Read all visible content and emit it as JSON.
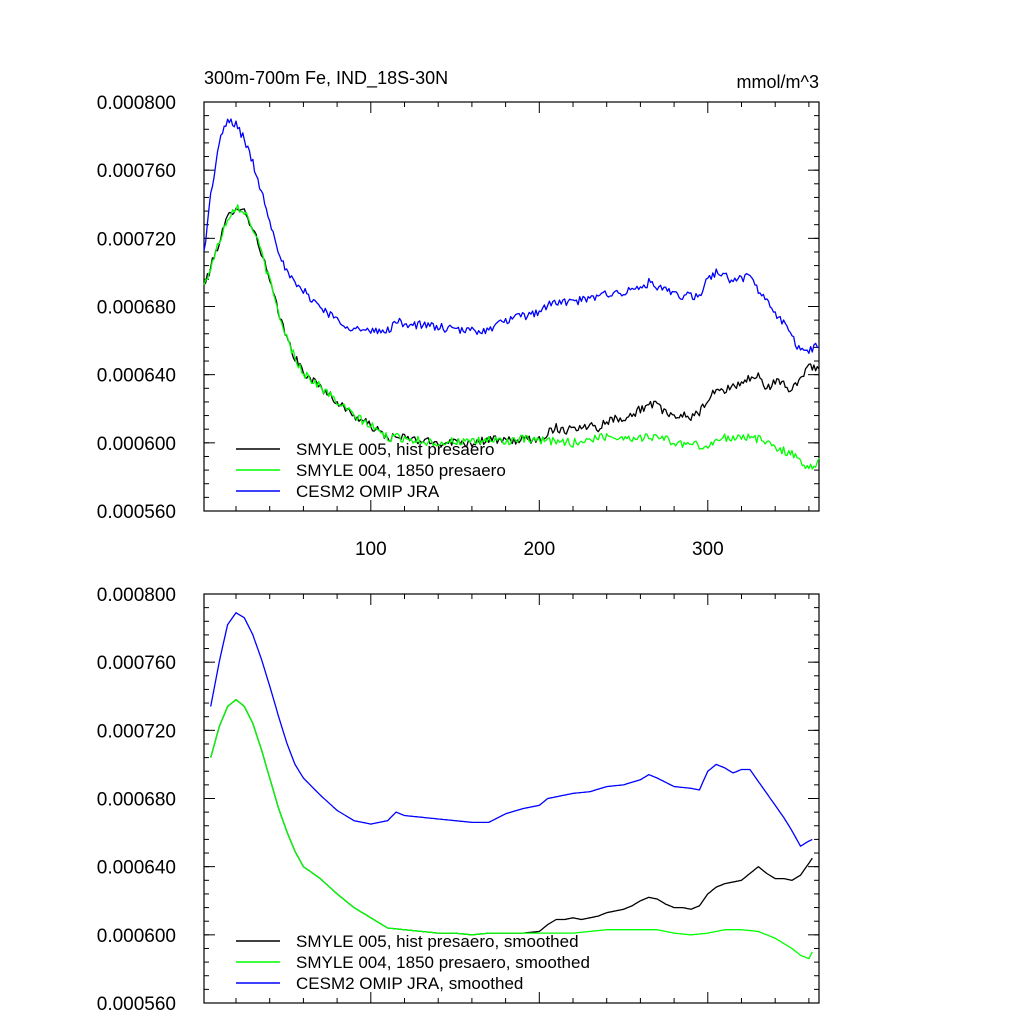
{
  "chart_data": [
    {
      "type": "line",
      "title": "300m-700m Fe, IND_18S-30N",
      "units": "mmol/m^3",
      "xlabel": "",
      "ylabel": "",
      "xlim": [
        1,
        366
      ],
      "ylim": [
        0.00056,
        0.0008
      ],
      "xticks": [
        100,
        200,
        300
      ],
      "xtick_labels": [
        "100",
        "200",
        "300"
      ],
      "yticks": [
        0.00056,
        0.0006,
        0.00064,
        0.00068,
        0.00072,
        0.00076,
        0.0008
      ],
      "ytick_labels": [
        "0.000560",
        "0.000600",
        "0.000640",
        "0.000680",
        "0.000720",
        "0.000760",
        "0.000800"
      ],
      "legend_position": "bottom-left",
      "series": [
        {
          "name": "SMYLE 005, hist presaero",
          "color": "#000000",
          "x": [
            1,
            5,
            10,
            15,
            20,
            25,
            30,
            35,
            40,
            45,
            50,
            55,
            60,
            70,
            80,
            90,
            100,
            110,
            120,
            130,
            140,
            150,
            160,
            170,
            180,
            190,
            200,
            205,
            210,
            215,
            220,
            225,
            230,
            235,
            240,
            245,
            250,
            255,
            260,
            265,
            270,
            275,
            280,
            285,
            290,
            295,
            300,
            305,
            310,
            315,
            320,
            325,
            330,
            335,
            340,
            345,
            350,
            355,
            360,
            366
          ],
          "values": [
            0.000692,
            0.000703,
            0.000718,
            0.000732,
            0.000739,
            0.000736,
            0.000726,
            0.000712,
            0.000695,
            0.000677,
            0.000662,
            0.00065,
            0.000641,
            0.000633,
            0.000624,
            0.000616,
            0.00061,
            0.000603,
            0.000603,
            0.000601,
            0.0006,
            0.000601,
            0.0006,
            0.000602,
            0.000601,
            0.000602,
            0.000602,
            0.000606,
            0.000609,
            0.000607,
            0.00061,
            0.000608,
            0.000611,
            0.000609,
            0.000613,
            0.000614,
            0.000615,
            0.000616,
            0.00062,
            0.000622,
            0.000622,
            0.000618,
            0.000614,
            0.000617,
            0.000615,
            0.000617,
            0.000626,
            0.00063,
            0.000631,
            0.000633,
            0.000635,
            0.000638,
            0.000639,
            0.000632,
            0.000636,
            0.000634,
            0.000631,
            0.000638,
            0.000646,
            0.000643
          ]
        },
        {
          "name": "SMYLE 004, 1850 presaero",
          "color": "#00ff00",
          "x": [
            1,
            5,
            10,
            15,
            20,
            25,
            30,
            35,
            40,
            45,
            50,
            55,
            60,
            70,
            80,
            90,
            100,
            110,
            120,
            130,
            140,
            150,
            160,
            170,
            180,
            190,
            200,
            210,
            220,
            230,
            240,
            250,
            260,
            270,
            280,
            290,
            300,
            310,
            320,
            330,
            340,
            350,
            355,
            360,
            366
          ],
          "values": [
            0.000692,
            0.000703,
            0.000718,
            0.000732,
            0.000739,
            0.000736,
            0.000726,
            0.000712,
            0.000695,
            0.000677,
            0.000662,
            0.00065,
            0.000641,
            0.000633,
            0.000624,
            0.000616,
            0.00061,
            0.000603,
            0.000603,
            0.000601,
            0.0006,
            0.000601,
            0.0006,
            0.000602,
            0.000601,
            0.000602,
            0.000601,
            0.000601,
            0.0006,
            0.000602,
            0.000604,
            0.000603,
            0.000603,
            0.000604,
            0.0006,
            0.000599,
            0.000598,
            0.000603,
            0.000604,
            0.000602,
            0.000598,
            0.000593,
            0.000589,
            0.000586,
            0.000589
          ]
        },
        {
          "name": "CESM2 OMIP JRA",
          "color": "#0000ff",
          "x": [
            1,
            5,
            10,
            15,
            20,
            25,
            30,
            35,
            40,
            45,
            50,
            55,
            60,
            70,
            80,
            90,
            100,
            110,
            115,
            120,
            130,
            140,
            150,
            160,
            170,
            180,
            190,
            200,
            205,
            210,
            220,
            230,
            240,
            250,
            260,
            265,
            270,
            280,
            290,
            295,
            300,
            305,
            310,
            315,
            320,
            325,
            330,
            335,
            340,
            345,
            350,
            355,
            360,
            366
          ],
          "values": [
            0.000712,
            0.000745,
            0.000776,
            0.000789,
            0.000787,
            0.000778,
            0.000764,
            0.000748,
            0.000731,
            0.000714,
            0.0007,
            0.000693,
            0.000689,
            0.00068,
            0.000672,
            0.000667,
            0.000665,
            0.000666,
            0.000671,
            0.00067,
            0.000669,
            0.000668,
            0.000666,
            0.000666,
            0.000666,
            0.000672,
            0.000674,
            0.000677,
            0.000681,
            0.000682,
            0.000683,
            0.000684,
            0.000688,
            0.000688,
            0.000691,
            0.000694,
            0.000691,
            0.000687,
            0.000686,
            0.000685,
            0.000697,
            0.0007,
            0.000698,
            0.000695,
            0.000697,
            0.000697,
            0.00069,
            0.000683,
            0.000676,
            0.00067,
            0.000663,
            0.000653,
            0.000655,
            0.000657
          ]
        }
      ],
      "noise_amplitude": 2.5e-06
    },
    {
      "type": "line",
      "title": "",
      "units": "",
      "xlabel": "",
      "ylabel": "",
      "xlim": [
        1,
        366
      ],
      "ylim": [
        0.00056,
        0.0008
      ],
      "xticks": [
        100,
        200,
        300
      ],
      "xtick_labels": [
        "",
        "",
        ""
      ],
      "yticks": [
        0.00056,
        0.0006,
        0.00064,
        0.00068,
        0.00072,
        0.00076,
        0.0008
      ],
      "ytick_labels": [
        "0.000560",
        "0.000600",
        "0.000640",
        "0.000680",
        "0.000720",
        "0.000760",
        "0.000800"
      ],
      "legend_position": "bottom-left",
      "series": [
        {
          "name": "SMYLE 005, hist presaero, smoothed",
          "color": "#000000",
          "x": [
            5,
            10,
            15,
            20,
            25,
            30,
            35,
            40,
            45,
            50,
            55,
            60,
            70,
            80,
            90,
            100,
            110,
            120,
            130,
            140,
            150,
            160,
            170,
            180,
            190,
            200,
            205,
            210,
            215,
            220,
            225,
            230,
            235,
            240,
            245,
            250,
            255,
            260,
            265,
            270,
            275,
            280,
            285,
            290,
            295,
            300,
            305,
            310,
            315,
            320,
            325,
            330,
            335,
            340,
            345,
            350,
            355,
            360,
            362
          ],
          "values": [
            0.000704,
            0.000722,
            0.000734,
            0.000738,
            0.000734,
            0.000724,
            0.000709,
            0.000692,
            0.000675,
            0.000661,
            0.000649,
            0.00064,
            0.000633,
            0.000624,
            0.000616,
            0.00061,
            0.000604,
            0.000603,
            0.000602,
            0.000601,
            0.000601,
            0.0006,
            0.000601,
            0.000601,
            0.000601,
            0.000602,
            0.000606,
            0.000609,
            0.000609,
            0.00061,
            0.000609,
            0.00061,
            0.000611,
            0.000613,
            0.000614,
            0.000615,
            0.000617,
            0.00062,
            0.000622,
            0.000621,
            0.000618,
            0.000616,
            0.000616,
            0.000615,
            0.000617,
            0.000624,
            0.000628,
            0.00063,
            0.000631,
            0.000632,
            0.000636,
            0.00064,
            0.000636,
            0.000633,
            0.000633,
            0.000632,
            0.000635,
            0.000642,
            0.000645
          ]
        },
        {
          "name": "SMYLE 004, 1850 presaero, smoothed",
          "color": "#00ff00",
          "x": [
            5,
            10,
            15,
            20,
            25,
            30,
            35,
            40,
            45,
            50,
            55,
            60,
            70,
            80,
            90,
            100,
            110,
            120,
            130,
            140,
            150,
            160,
            170,
            180,
            190,
            200,
            210,
            220,
            230,
            240,
            250,
            260,
            270,
            280,
            290,
            300,
            310,
            320,
            330,
            340,
            350,
            355,
            360,
            362
          ],
          "values": [
            0.000704,
            0.000722,
            0.000734,
            0.000738,
            0.000734,
            0.000724,
            0.000709,
            0.000692,
            0.000675,
            0.000661,
            0.000649,
            0.00064,
            0.000633,
            0.000624,
            0.000616,
            0.00061,
            0.000604,
            0.000603,
            0.000602,
            0.000601,
            0.000601,
            0.0006,
            0.000601,
            0.000601,
            0.000601,
            0.000601,
            0.000601,
            0.000601,
            0.000602,
            0.000603,
            0.000603,
            0.000603,
            0.000603,
            0.000601,
            0.0006,
            0.000601,
            0.000603,
            0.000603,
            0.000602,
            0.000598,
            0.000592,
            0.000588,
            0.000586,
            0.00059
          ]
        },
        {
          "name": "CESM2 OMIP JRA, smoothed",
          "color": "#0000ff",
          "x": [
            5,
            10,
            15,
            20,
            25,
            30,
            35,
            40,
            45,
            50,
            55,
            60,
            70,
            80,
            90,
            100,
            110,
            115,
            120,
            130,
            140,
            150,
            160,
            170,
            180,
            190,
            200,
            205,
            210,
            220,
            230,
            240,
            250,
            260,
            265,
            270,
            280,
            290,
            295,
            300,
            305,
            310,
            315,
            320,
            325,
            330,
            335,
            340,
            345,
            350,
            355,
            360,
            362
          ],
          "values": [
            0.000734,
            0.00076,
            0.000782,
            0.000789,
            0.000786,
            0.000776,
            0.000762,
            0.000746,
            0.000729,
            0.000713,
            0.0007,
            0.000692,
            0.000682,
            0.000673,
            0.000667,
            0.000665,
            0.000667,
            0.000672,
            0.00067,
            0.000669,
            0.000668,
            0.000667,
            0.000666,
            0.000666,
            0.000671,
            0.000674,
            0.000676,
            0.00068,
            0.000681,
            0.000683,
            0.000684,
            0.000687,
            0.000688,
            0.000691,
            0.000694,
            0.000692,
            0.000687,
            0.000686,
            0.000685,
            0.000696,
            0.0007,
            0.000698,
            0.000695,
            0.000697,
            0.000697,
            0.00069,
            0.000683,
            0.000676,
            0.000669,
            0.000661,
            0.000652,
            0.000655,
            0.000656
          ]
        }
      ],
      "noise_amplitude": 0.0
    }
  ]
}
